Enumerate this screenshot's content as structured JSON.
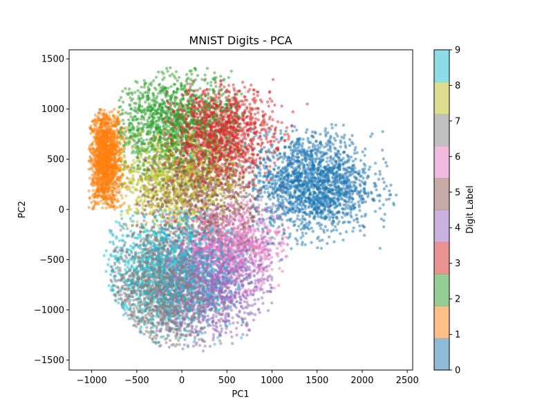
{
  "chart_data": {
    "type": "scatter",
    "title": "MNIST Digits - PCA",
    "xlabel": "PC1",
    "ylabel": "PC2",
    "xlim": [
      -1250,
      2560
    ],
    "ylim": [
      -1600,
      1590
    ],
    "xticks": [
      -1000,
      -500,
      0,
      500,
      1000,
      1500,
      2000,
      2500
    ],
    "xtick_labels": [
      "−1000",
      "−500",
      "0",
      "500",
      "1000",
      "1500",
      "2000",
      "2500"
    ],
    "yticks": [
      -1500,
      -1000,
      -500,
      0,
      500,
      1000,
      1500
    ],
    "ytick_labels": [
      "−1500",
      "−1000",
      "−500",
      "0",
      "500",
      "1000",
      "1500"
    ],
    "grid": false,
    "alpha": 0.5,
    "marker_size": 10,
    "colormap": "tab10",
    "colorbar": {
      "label": "Digit Label",
      "ticks": [
        0,
        1,
        2,
        3,
        4,
        5,
        6,
        7,
        8,
        9
      ],
      "tick_labels": [
        "0",
        "1",
        "2",
        "3",
        "4",
        "5",
        "6",
        "7",
        "8",
        "9"
      ],
      "range": [
        0,
        9
      ]
    },
    "series": [
      {
        "name": "0",
        "label": 0,
        "color": "#1f77b4",
        "center": [
          1450,
          250
        ],
        "spread": [
          330,
          250
        ],
        "extent_x": [
          700,
          2380
        ],
        "extent_y": [
          -600,
          850
        ]
      },
      {
        "name": "1",
        "label": 1,
        "color": "#ff7f0e",
        "center": [
          -850,
          500
        ],
        "spread": [
          90,
          260
        ],
        "extent_x": [
          -1030,
          -550
        ],
        "extent_y": [
          0,
          1000
        ]
      },
      {
        "name": "2",
        "label": 2,
        "color": "#2ca02c",
        "center": [
          -100,
          850
        ],
        "spread": [
          350,
          250
        ],
        "extent_x": [
          -700,
          700
        ],
        "extent_y": [
          200,
          1430
        ]
      },
      {
        "name": "3",
        "label": 3,
        "color": "#d62728",
        "center": [
          400,
          750
        ],
        "spread": [
          300,
          250
        ],
        "extent_x": [
          -200,
          1400
        ],
        "extent_y": [
          100,
          1300
        ]
      },
      {
        "name": "4",
        "label": 4,
        "color": "#9467bd",
        "center": [
          300,
          -750
        ],
        "spread": [
          330,
          250
        ],
        "extent_x": [
          -300,
          1000
        ],
        "extent_y": [
          -1400,
          -300
        ]
      },
      {
        "name": "5",
        "label": 5,
        "color": "#8c564b",
        "center": [
          200,
          100
        ],
        "spread": [
          350,
          300
        ],
        "extent_x": [
          -500,
          900
        ],
        "extent_y": [
          -500,
          800
        ]
      },
      {
        "name": "6",
        "label": 6,
        "color": "#e377c2",
        "center": [
          550,
          -350
        ],
        "spread": [
          300,
          200
        ],
        "extent_x": [
          -200,
          1200
        ],
        "extent_y": [
          -900,
          100
        ]
      },
      {
        "name": "7",
        "label": 7,
        "color": "#7f7f7f",
        "center": [
          -250,
          -800
        ],
        "spread": [
          280,
          300
        ],
        "extent_x": [
          -800,
          900
        ],
        "extent_y": [
          -1460,
          -100
        ]
      },
      {
        "name": "8",
        "label": 8,
        "color": "#bcbd22",
        "center": [
          -100,
          300
        ],
        "spread": [
          350,
          250
        ],
        "extent_x": [
          -700,
          800
        ],
        "extent_y": [
          -200,
          800
        ]
      },
      {
        "name": "9",
        "label": 9,
        "color": "#17becf",
        "center": [
          -150,
          -600
        ],
        "spread": [
          350,
          300
        ],
        "extent_x": [
          -900,
          800
        ],
        "extent_y": [
          -1380,
          0
        ]
      }
    ]
  }
}
